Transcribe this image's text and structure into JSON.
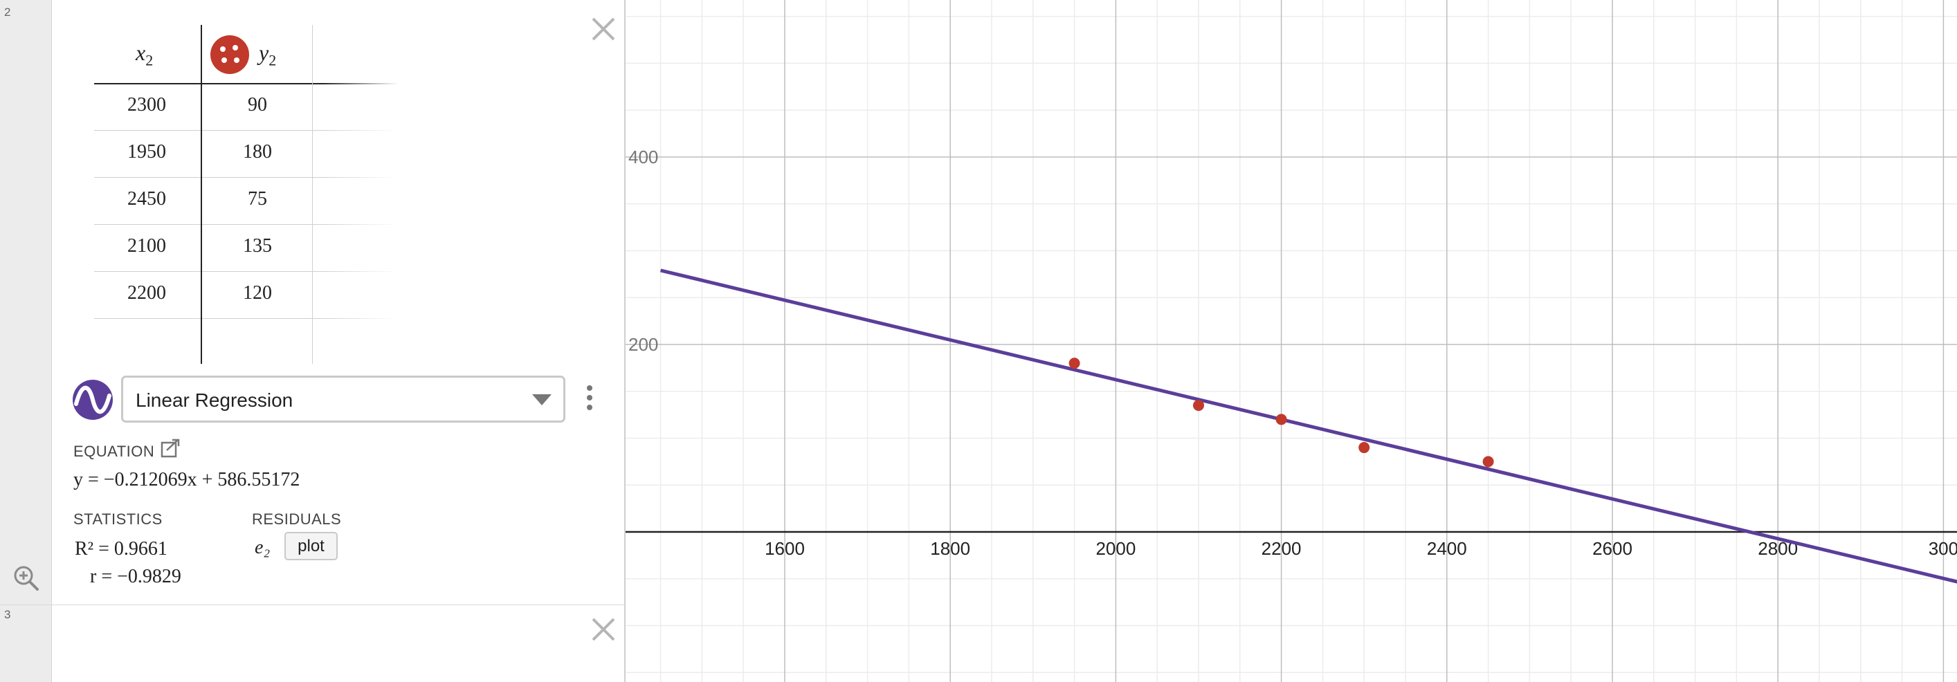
{
  "expression_list": {
    "rows": [
      {
        "number": "2"
      },
      {
        "number": "3"
      }
    ],
    "table": {
      "x_header": "x",
      "x_sub": "2",
      "y_header": "y",
      "y_sub": "2",
      "point_color": "#c0392b",
      "rows": [
        {
          "x": "2300",
          "y": "90"
        },
        {
          "x": "1950",
          "y": "180"
        },
        {
          "x": "2450",
          "y": "75"
        },
        {
          "x": "2100",
          "y": "135"
        },
        {
          "x": "2200",
          "y": "120"
        }
      ]
    },
    "regression": {
      "selected": "Linear Regression",
      "equation_label": "EQUATION",
      "equation": "y = −0.212069x + 586.55172",
      "statistics_label": "STATISTICS",
      "r_squared": "R² = 0.9661",
      "r": "r = −0.9829",
      "residuals_label": "RESIDUALS",
      "residual_var": "e₂",
      "plot_label": "plot",
      "logo_color": "#5b3e9a"
    }
  },
  "graph": {
    "line_color": "#5b3e9a",
    "point_color": "#c0392b",
    "x_ticks": [
      "1600",
      "1800",
      "2000",
      "2200",
      "2400",
      "2600",
      "2800",
      "300"
    ],
    "y_ticks": [
      "400",
      "200"
    ],
    "slope": -0.212069,
    "intercept": 586.55172,
    "points": [
      {
        "x": 1950,
        "y": 180
      },
      {
        "x": 2100,
        "y": 135
      },
      {
        "x": 2200,
        "y": 120
      },
      {
        "x": 2300,
        "y": 90
      },
      {
        "x": 2450,
        "y": 75
      }
    ]
  }
}
